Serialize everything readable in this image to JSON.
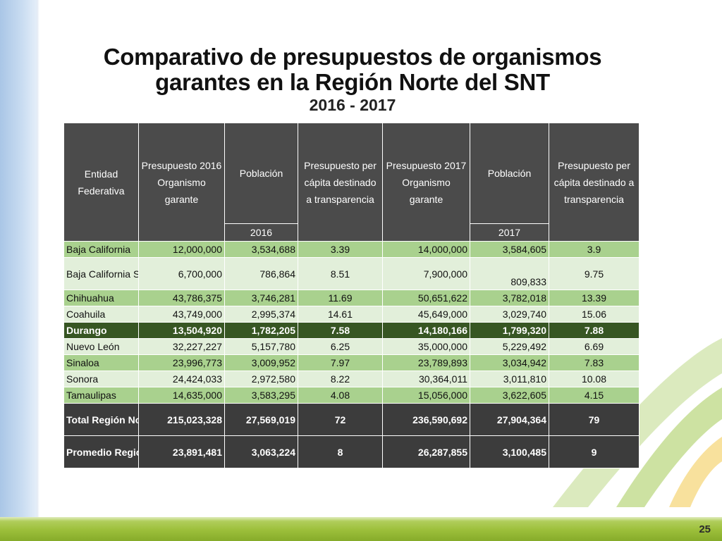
{
  "slide": {
    "title_line1": "Comparativo de presupuestos de organismos",
    "title_line2": "garantes en la Región Norte del SNT",
    "subtitle": "2016 - 2017",
    "page_number": "25"
  },
  "colors": {
    "header_bg": "#4b4b4b",
    "row_green": "#a9d18e",
    "row_light": "#e2efda",
    "row_highlight": "#375623",
    "total_bg": "#3c3c3c",
    "footer_bar": "#9cbf3a",
    "left_band": "#c9dcf1"
  },
  "table": {
    "headers": {
      "entidad": "Entidad Federativa",
      "pres2016": "Presupuesto 2016 Organismo garante",
      "pob2016": "Población",
      "percapita2016": "Presupuesto per cápita destinado a transparencia",
      "pres2017": "Presupuesto 2017 Organismo garante",
      "pob2017": "Población",
      "percapita2017": "Presupuesto per cápita destinado a transparencia",
      "year2016": "2016",
      "year2017": "2017"
    },
    "rows": [
      {
        "entidad": "Baja California",
        "pres2016": "12,000,000",
        "pob2016": "3,534,688",
        "pc2016": "3.39",
        "pres2017": "14,000,000",
        "pob2017": "3,584,605",
        "pc2017": "3.9"
      },
      {
        "entidad": "Baja California Sur",
        "pres2016": "6,700,000",
        "pob2016": "786,864",
        "pc2016": "8.51",
        "pres2017": "7,900,000",
        "pob2017": "809,833",
        "pc2017": "9.75"
      },
      {
        "entidad": "Chihuahua",
        "pres2016": "43,786,375",
        "pob2016": "3,746,281",
        "pc2016": "11.69",
        "pres2017": "50,651,622",
        "pob2017": "3,782,018",
        "pc2017": "13.39"
      },
      {
        "entidad": "Coahuila",
        "pres2016": "43,749,000",
        "pob2016": "2,995,374",
        "pc2016": "14.61",
        "pres2017": "45,649,000",
        "pob2017": "3,029,740",
        "pc2017": "15.06"
      },
      {
        "entidad": "Durango",
        "pres2016": "13,504,920",
        "pob2016": "1,782,205",
        "pc2016": "7.58",
        "pres2017": "14,180,166",
        "pob2017": "1,799,320",
        "pc2017": "7.88"
      },
      {
        "entidad": "Nuevo León",
        "pres2016": "32,227,227",
        "pob2016": "5,157,780",
        "pc2016": "6.25",
        "pres2017": "35,000,000",
        "pob2017": "5,229,492",
        "pc2017": "6.69"
      },
      {
        "entidad": "Sinaloa",
        "pres2016": "23,996,773",
        "pob2016": "3,009,952",
        "pc2016": "7.97",
        "pres2017": "23,789,893",
        "pob2017": "3,034,942",
        "pc2017": "7.83"
      },
      {
        "entidad": "Sonora",
        "pres2016": "24,424,033",
        "pob2016": "2,972,580",
        "pc2016": "8.22",
        "pres2017": "30,364,011",
        "pob2017": "3,011,810",
        "pc2017": "10.08"
      },
      {
        "entidad": "Tamaulipas",
        "pres2016": "14,635,000",
        "pob2016": "3,583,295",
        "pc2016": "4.08",
        "pres2017": "15,056,000",
        "pob2017": "3,622,605",
        "pc2017": "4.15"
      }
    ],
    "total": {
      "entidad": "Total Región Norte",
      "pres2016": "215,023,328",
      "pob2016": "27,569,019",
      "pc2016": "72",
      "pres2017": "236,590,692",
      "pob2017": "27,904,364",
      "pc2017": "79"
    },
    "average": {
      "entidad": "Promedio Región Norte",
      "pres2016": "23,891,481",
      "pob2016": "3,063,224",
      "pc2016": "8",
      "pres2017": "26,287,855",
      "pob2017": "3,100,485",
      "pc2017": "9"
    }
  }
}
